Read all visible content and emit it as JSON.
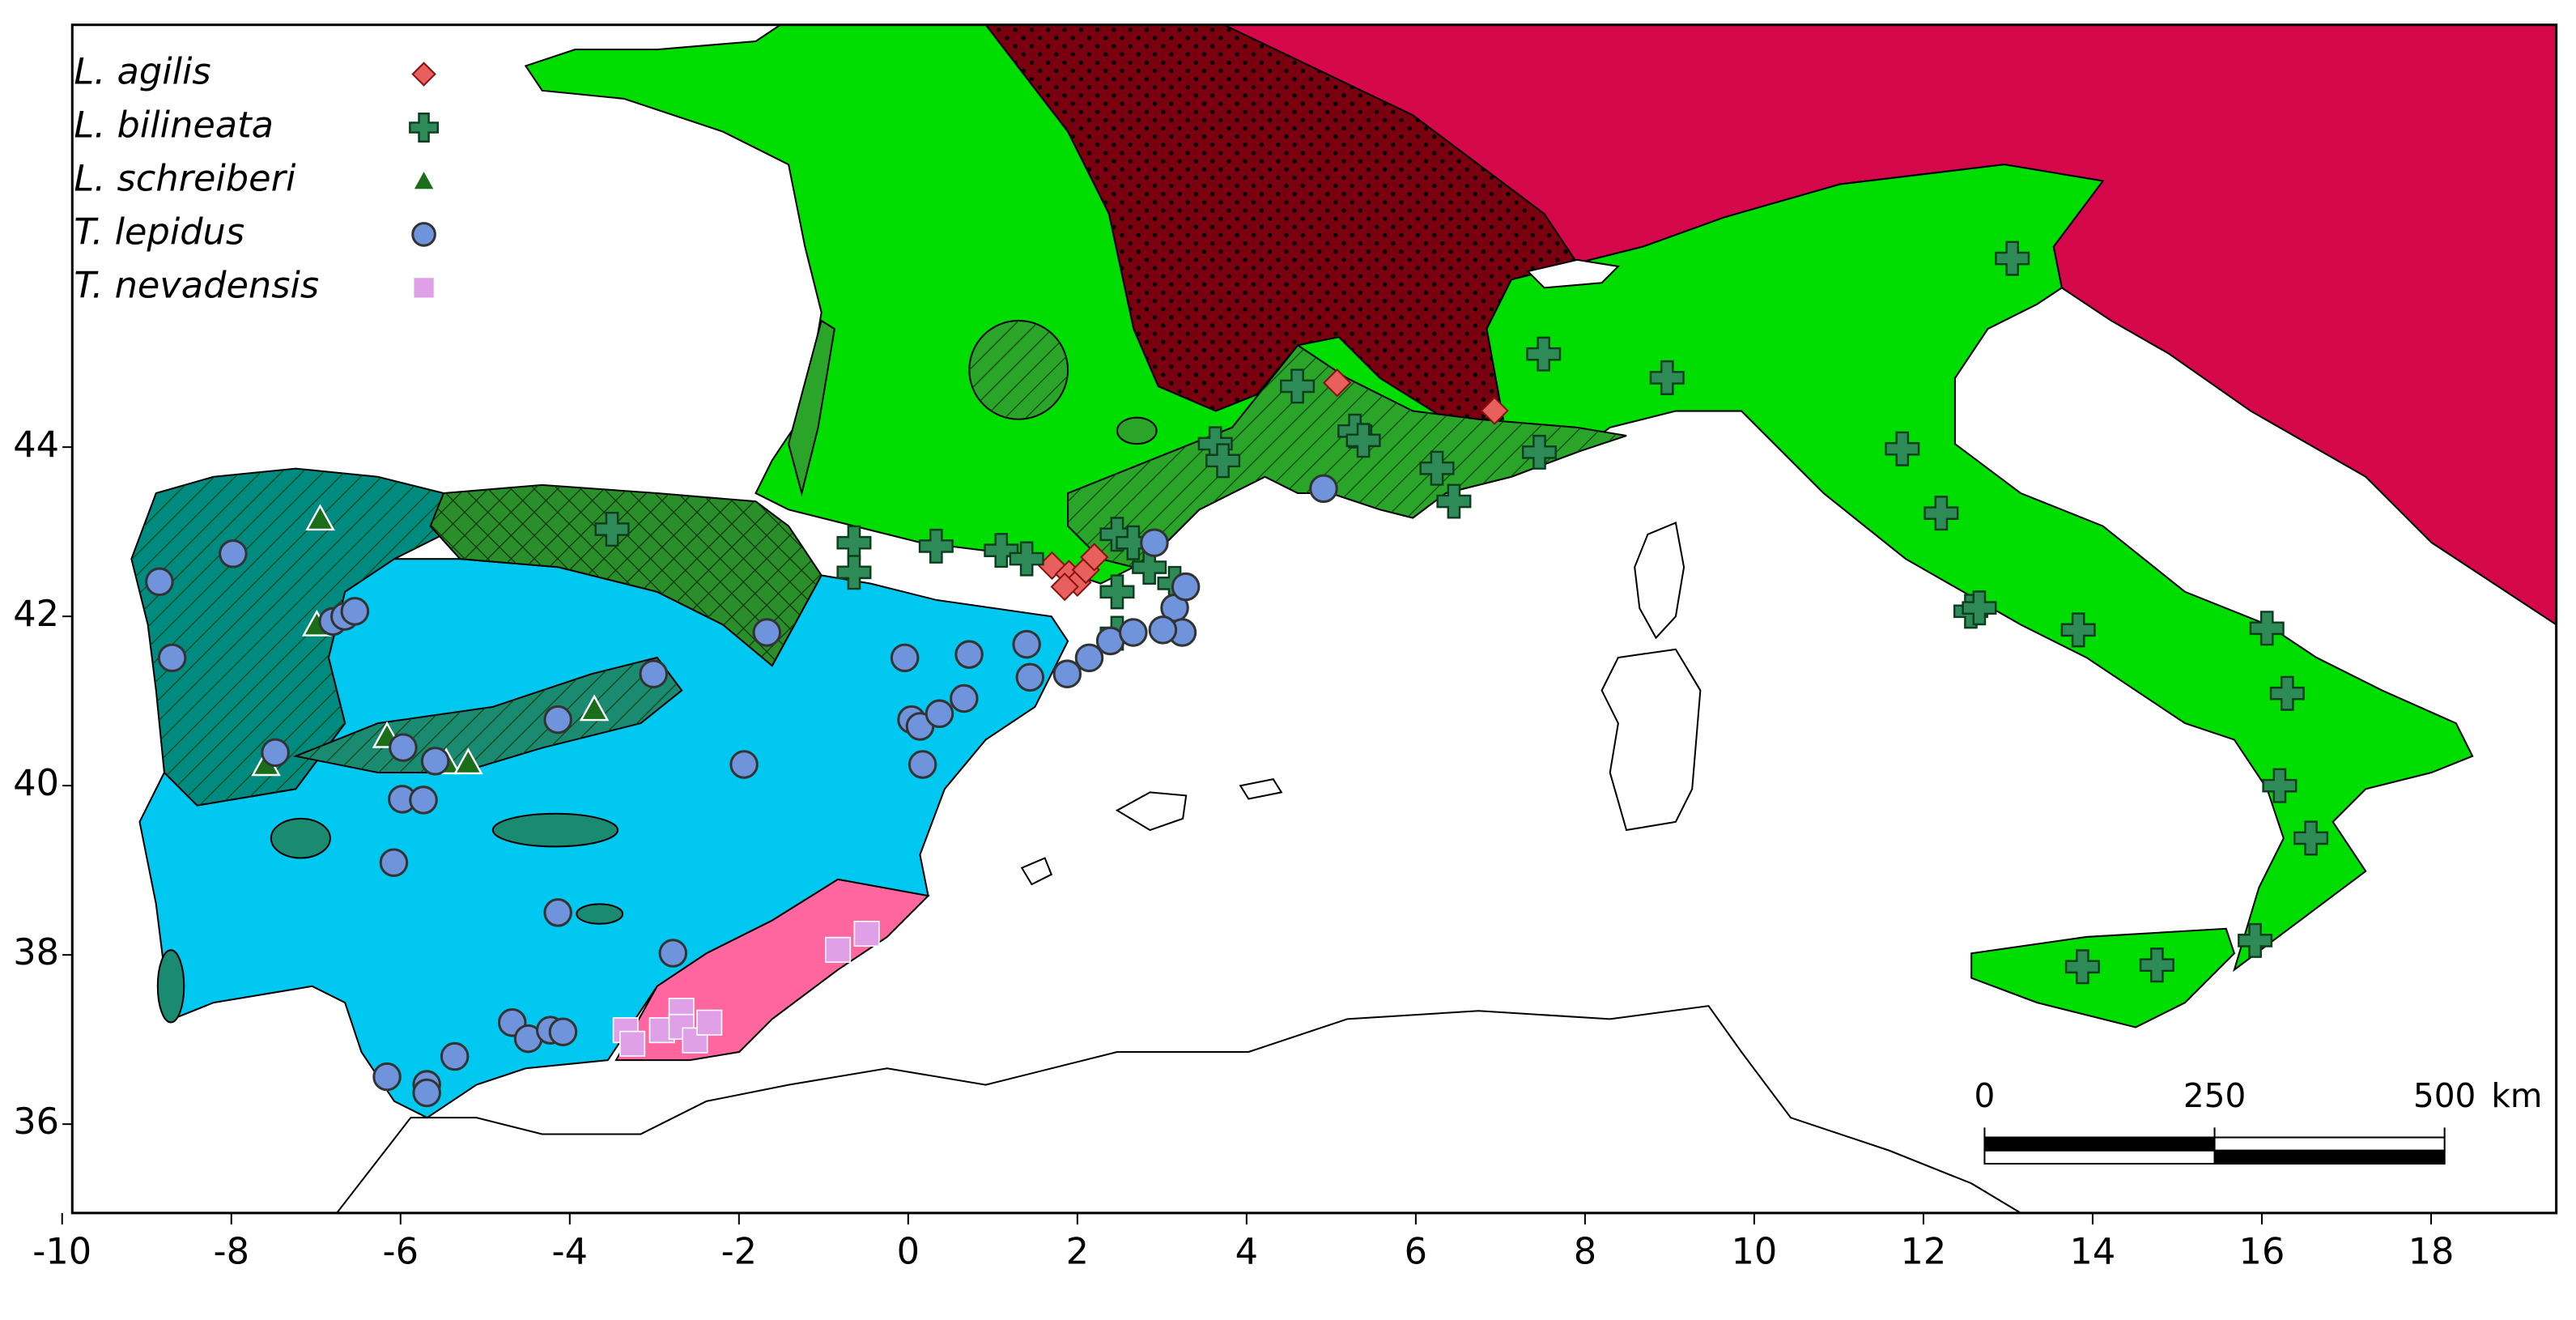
{
  "species": [
    {
      "name": "L. agilis",
      "color": "#e8605e",
      "shape": "diamond",
      "points": [
        [
          5.07,
          44.76
        ],
        [
          6.93,
          44.43
        ],
        [
          1.7,
          42.6
        ],
        [
          1.9,
          42.5
        ],
        [
          2.0,
          42.4
        ],
        [
          2.1,
          42.55
        ],
        [
          2.2,
          42.7
        ],
        [
          1.85,
          42.35
        ]
      ]
    },
    {
      "name": "L. bilineata",
      "color": "#2e8b57",
      "shape": "cross",
      "points": [
        [
          -3.5,
          43.03
        ],
        [
          -0.64,
          42.87
        ],
        [
          -0.64,
          42.52
        ],
        [
          0.33,
          42.83
        ],
        [
          1.1,
          42.78
        ],
        [
          1.4,
          42.68
        ],
        [
          2.47,
          42.97
        ],
        [
          2.66,
          42.87
        ],
        [
          2.47,
          42.29
        ],
        [
          2.85,
          42.58
        ],
        [
          2.47,
          41.8
        ],
        [
          3.15,
          42.39
        ],
        [
          3.63,
          44.04
        ],
        [
          3.72,
          43.84
        ],
        [
          4.6,
          44.72
        ],
        [
          5.28,
          44.19
        ],
        [
          5.38,
          44.08
        ],
        [
          6.25,
          43.75
        ],
        [
          6.45,
          43.36
        ],
        [
          7.46,
          43.94
        ],
        [
          7.51,
          45.1
        ],
        [
          8.97,
          44.82
        ],
        [
          13.05,
          46.23
        ],
        [
          11.75,
          43.98
        ],
        [
          12.21,
          43.22
        ],
        [
          12.56,
          42.06
        ],
        [
          12.66,
          42.1
        ],
        [
          13.83,
          41.84
        ],
        [
          16.06,
          41.86
        ],
        [
          16.3,
          41.09
        ],
        [
          16.21,
          40.0
        ],
        [
          16.58,
          39.38
        ],
        [
          15.92,
          38.17
        ],
        [
          13.88,
          37.86
        ],
        [
          14.76,
          37.88
        ]
      ]
    },
    {
      "name": "L. schreiberi",
      "color": "#1a6e1a",
      "shape": "triangle",
      "points": [
        [
          -6.95,
          43.15
        ],
        [
          -6.99,
          41.9
        ],
        [
          -7.59,
          40.25
        ],
        [
          -6.16,
          40.58
        ],
        [
          -5.46,
          40.27
        ],
        [
          -5.2,
          40.27
        ],
        [
          -3.71,
          40.9
        ]
      ]
    },
    {
      "name": "T. lepidus",
      "color": "#6f94dc",
      "shape": "circle",
      "points": [
        [
          -8.85,
          42.41
        ],
        [
          -7.98,
          42.74
        ],
        [
          -8.7,
          41.51
        ],
        [
          -6.8,
          41.94
        ],
        [
          -6.66,
          42.0
        ],
        [
          -6.54,
          42.06
        ],
        [
          -7.48,
          40.39
        ],
        [
          -5.97,
          40.45
        ],
        [
          -5.59,
          40.29
        ],
        [
          -5.98,
          39.84
        ],
        [
          -5.73,
          39.83
        ],
        [
          -6.08,
          39.09
        ],
        [
          -3.01,
          41.32
        ],
        [
          -4.14,
          40.78
        ],
        [
          -1.94,
          40.25
        ],
        [
          -1.67,
          41.81
        ],
        [
          -0.04,
          41.51
        ],
        [
          0.04,
          40.78
        ],
        [
          0.14,
          40.7
        ],
        [
          0.37,
          40.85
        ],
        [
          0.72,
          41.55
        ],
        [
          0.66,
          41.03
        ],
        [
          0.17,
          40.25
        ],
        [
          1.4,
          41.67
        ],
        [
          1.44,
          41.28
        ],
        [
          1.88,
          41.32
        ],
        [
          2.14,
          41.51
        ],
        [
          2.39,
          41.71
        ],
        [
          2.66,
          41.81
        ],
        [
          2.91,
          42.87
        ],
        [
          3.15,
          42.1
        ],
        [
          3.28,
          42.35
        ],
        [
          3.24,
          41.81
        ],
        [
          3.01,
          41.84
        ],
        [
          4.91,
          43.51
        ],
        [
          -4.14,
          38.5
        ],
        [
          -2.78,
          38.02
        ],
        [
          -6.16,
          36.56
        ],
        [
          -5.69,
          36.47
        ],
        [
          -5.69,
          36.37
        ],
        [
          -5.36,
          36.8
        ],
        [
          -4.68,
          37.2
        ],
        [
          -4.49,
          37.01
        ],
        [
          -4.23,
          37.11
        ],
        [
          -4.08,
          37.09
        ]
      ]
    },
    {
      "name": "T. nevadensis",
      "color": "#e0a0e8",
      "shape": "square",
      "points": [
        [
          -3.34,
          37.11
        ],
        [
          -3.26,
          36.95
        ],
        [
          -2.91,
          37.11
        ],
        [
          -2.68,
          37.34
        ],
        [
          -2.68,
          37.15
        ],
        [
          -2.52,
          36.99
        ],
        [
          -2.35,
          37.2
        ],
        [
          -0.83,
          38.06
        ],
        [
          -0.49,
          38.25
        ]
      ]
    }
  ],
  "axes": {
    "xlim": [
      -9.88,
      19.48
    ],
    "ylim": [
      34.95,
      48.99
    ],
    "xticks": [
      -10,
      -8,
      -6,
      -4,
      -2,
      0,
      2,
      4,
      6,
      8,
      10,
      12,
      14,
      16,
      18
    ],
    "yticks": [
      36,
      38,
      40,
      42,
      44
    ]
  },
  "scale_bar": {
    "ticks": [
      0,
      250,
      500
    ],
    "unit": "km"
  }
}
